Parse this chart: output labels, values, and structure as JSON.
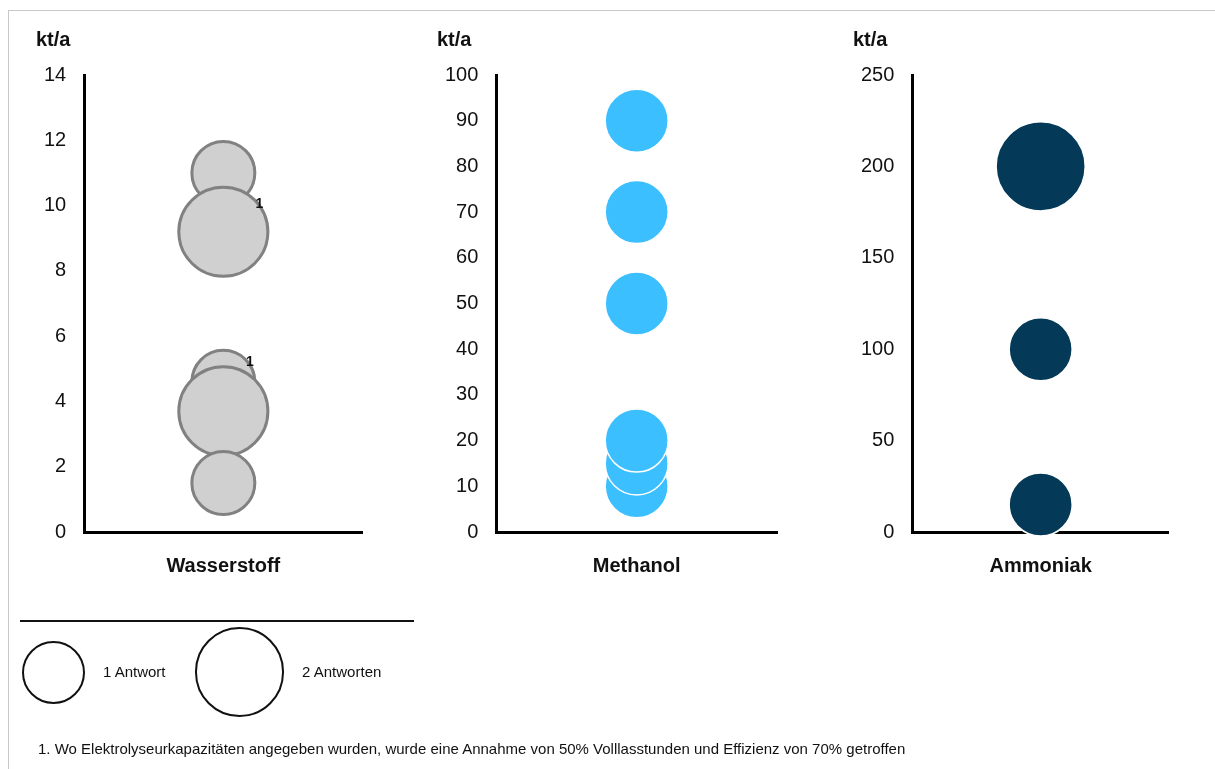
{
  "chart_data": [
    {
      "type": "bubble",
      "ylabel": "kt/a",
      "categories": [
        "Wasserstoff"
      ],
      "ylim": [
        0,
        14
      ],
      "yticks": [
        0,
        2,
        4,
        6,
        8,
        10,
        12,
        14
      ],
      "grid": false,
      "legend": false,
      "series": [
        {
          "color": "#d0d0d0",
          "x": [
            "Wasserstoff",
            "Wasserstoff",
            "Wasserstoff",
            "Wasserstoff",
            "Wasserstoff"
          ],
          "values": [
            11,
            9.2,
            4.6,
            3.7,
            1.5
          ],
          "sizes": [
            1,
            2,
            1,
            2,
            1
          ]
        }
      ],
      "size_legend": [
        {
          "value": 1,
          "label": "1 Antwort"
        },
        {
          "value": 2,
          "label": "2 Antworten"
        }
      ],
      "annotations": [
        {
          "text": "1",
          "x": "Wasserstoff",
          "y": 9.2
        },
        {
          "text": "1",
          "x": "Wasserstoff",
          "y": 4.6
        },
        "1. Wo Elektrolyseurkapazitäten angegeben wurden, wurde eine Annahme von 50% Volllasstunden und Effizienz von 70% getroffen"
      ]
    },
    {
      "type": "bubble",
      "ylabel": "kt/a",
      "categories": [
        "Methanol"
      ],
      "ylim": [
        0,
        100
      ],
      "yticks": [
        0,
        10,
        20,
        30,
        40,
        50,
        60,
        70,
        80,
        90,
        100
      ],
      "grid": false,
      "legend": false,
      "series": [
        {
          "color": "#3bbfff",
          "x": [
            "Methanol",
            "Methanol",
            "Methanol",
            "Methanol",
            "Methanol",
            "Methanol"
          ],
          "values": [
            90,
            70,
            50,
            10,
            15,
            20
          ]
        }
      ]
    },
    {
      "type": "bubble",
      "ylabel": "kt/a",
      "categories": [
        "Ammoniak"
      ],
      "ylim": [
        0,
        250
      ],
      "yticks": [
        0,
        50,
        100,
        150,
        200,
        250
      ],
      "grid": false,
      "legend": false,
      "series": [
        {
          "color": "#043a58",
          "x": [
            "Ammoniak",
            "Ammoniak",
            "Ammoniak"
          ],
          "values": [
            200,
            100,
            15
          ],
          "sizes": [
            1,
            0.5,
            0.5
          ]
        }
      ]
    }
  ]
}
